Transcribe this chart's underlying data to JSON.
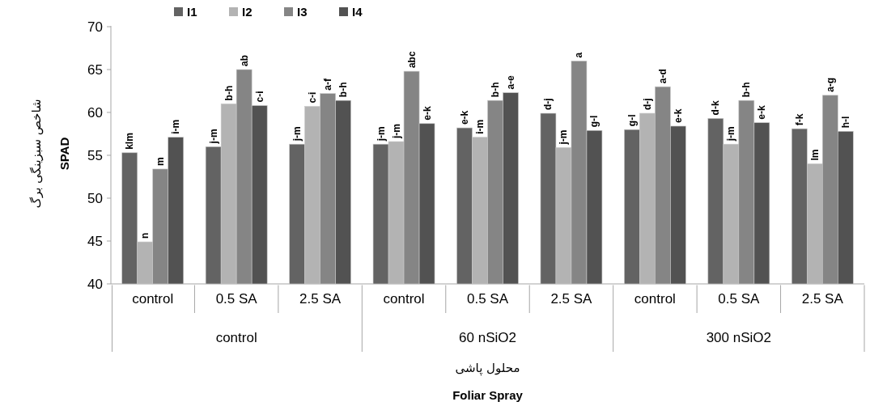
{
  "chart_data": {
    "type": "bar",
    "xlabel": "محلول پاشی",
    "ylabel": "شاخص سبزینگی برگ",
    "categories": [
      "control",
      "0.5 SA",
      "2.5 SA",
      "control",
      "0.5 SA",
      "2.5 SA",
      "control",
      "0.5 SA",
      "2.5 SA"
    ],
    "series": [
      {
        "name": "I1",
        "color": "#636363",
        "values": [
          55.3,
          56.0,
          56.3,
          56.3,
          58.2,
          59.9,
          58.0,
          59.3,
          58.1
        ],
        "value_labels": [
          "klm",
          "j-m",
          "j-m",
          "j-m",
          "e-k",
          "d-j",
          "g-l",
          "d-k",
          "f-k"
        ]
      },
      {
        "name": "I2",
        "color": "#b3b3b3",
        "values": [
          44.9,
          61.0,
          60.7,
          56.6,
          57.1,
          55.9,
          59.9,
          56.3,
          54.0
        ],
        "value_labels": [
          "n",
          "b-h",
          "c-i",
          "j-m",
          "i-m",
          "j-m",
          "d-j",
          "j-m",
          "lm"
        ]
      },
      {
        "name": "I3",
        "color": "#858585",
        "values": [
          53.4,
          65.0,
          62.2,
          64.8,
          61.4,
          66.0,
          63.0,
          61.4,
          62.0
        ],
        "value_labels": [
          "m",
          "ab",
          "a-f",
          "abc",
          "b-h",
          "a",
          "a-d",
          "b-h",
          "a-g"
        ]
      },
      {
        "name": "I4",
        "color": "#525252",
        "values": [
          57.1,
          60.8,
          61.4,
          58.7,
          62.3,
          57.9,
          58.4,
          58.8,
          57.8
        ],
        "value_labels": [
          "i-m",
          "c-i",
          "b-h",
          "e-k",
          "a-e",
          "g-l",
          "e-k",
          "e-k",
          "h-l"
        ]
      }
    ],
    "annotations": [
      "control",
      "60 nSiO2",
      "300 nSiO2",
      "Foliar Spray",
      "SPAD"
    ],
    "ylim": [
      40,
      70
    ],
    "yticks": [
      40,
      45,
      50,
      55,
      60,
      65,
      70
    ],
    "legend": "top left"
  }
}
